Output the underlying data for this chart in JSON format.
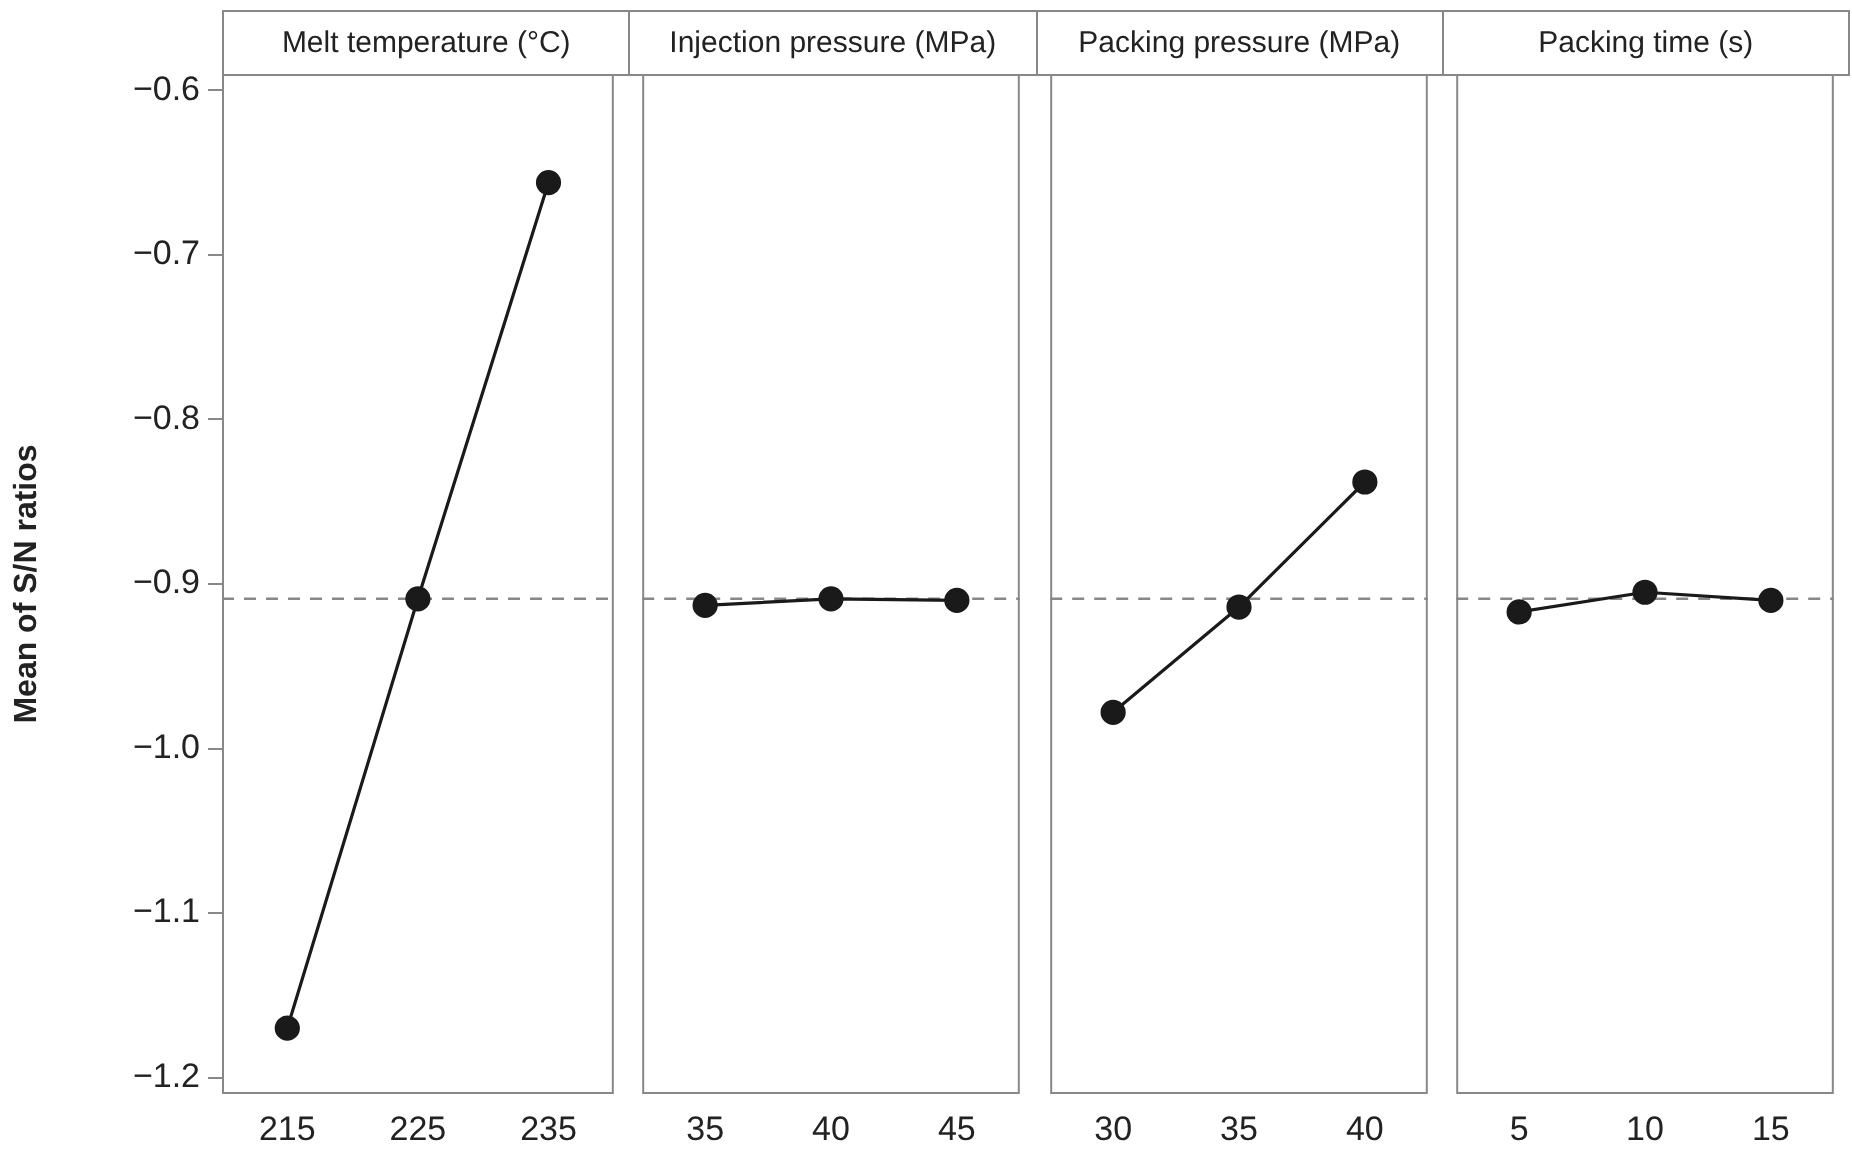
{
  "chart_data": [
    {
      "type": "line",
      "title": "Melt temperature (°C)",
      "ylabel": "Mean of S/N ratios",
      "categories": [
        "215",
        "225",
        "235"
      ],
      "values": [
        -1.17,
        -0.909,
        -0.656
      ],
      "color": "#1a1a1a",
      "marker": "circle",
      "ylim": [
        -1.21,
        -0.59
      ],
      "yticks": [
        -1.2,
        -1.1,
        {
          "value": -1,
          "label": "−1.0"
        },
        -0.9,
        -0.8,
        -0.7,
        -0.6
      ],
      "ref_lines": [
        {
          "axis": "y",
          "value": -0.909,
          "color": "#888888",
          "line_style": "dashed"
        }
      ]
    },
    {
      "type": "line",
      "title": "Injection pressure (MPa)",
      "categories": [
        "35",
        "40",
        "45"
      ],
      "values": [
        -0.913,
        -0.909,
        -0.91
      ],
      "color": "#1a1a1a",
      "marker": "circle",
      "ylim": [
        -1.21,
        -0.59
      ],
      "yticks": [
        -1.2,
        -1.1,
        -1.0,
        -0.9,
        -0.8,
        -0.7,
        -0.6
      ],
      "tick_labels": "x",
      "ref_lines": [
        {
          "axis": "y",
          "value": -0.909,
          "color": "#888888",
          "line_style": "dashed"
        }
      ]
    },
    {
      "type": "line",
      "title": "Packing pressure (MPa)",
      "categories": [
        "30",
        "35",
        "40"
      ],
      "values": [
        -0.978,
        -0.914,
        -0.838
      ],
      "color": "#1a1a1a",
      "marker": "circle",
      "ylim": [
        -1.21,
        -0.59
      ],
      "yticks": [
        -1.2,
        -1.1,
        -1.0,
        -0.9,
        -0.8,
        -0.7,
        -0.6
      ],
      "tick_labels": "x",
      "ref_lines": [
        {
          "axis": "y",
          "value": -0.909,
          "color": "#888888",
          "line_style": "dashed"
        }
      ]
    },
    {
      "type": "line",
      "title": "Packing time (s)",
      "categories": [
        "5",
        "10",
        "15"
      ],
      "values": [
        -0.917,
        -0.905,
        -0.91
      ],
      "color": "#1a1a1a",
      "marker": "circle",
      "ylim": [
        -1.21,
        -0.59
      ],
      "yticks": [
        -1.2,
        -1.1,
        -1.0,
        -0.9,
        -0.8,
        -0.7,
        -0.6
      ],
      "tick_labels": "x",
      "ref_lines": [
        {
          "axis": "y",
          "value": -0.909,
          "color": "#888888",
          "line_style": "dashed"
        }
      ]
    }
  ]
}
